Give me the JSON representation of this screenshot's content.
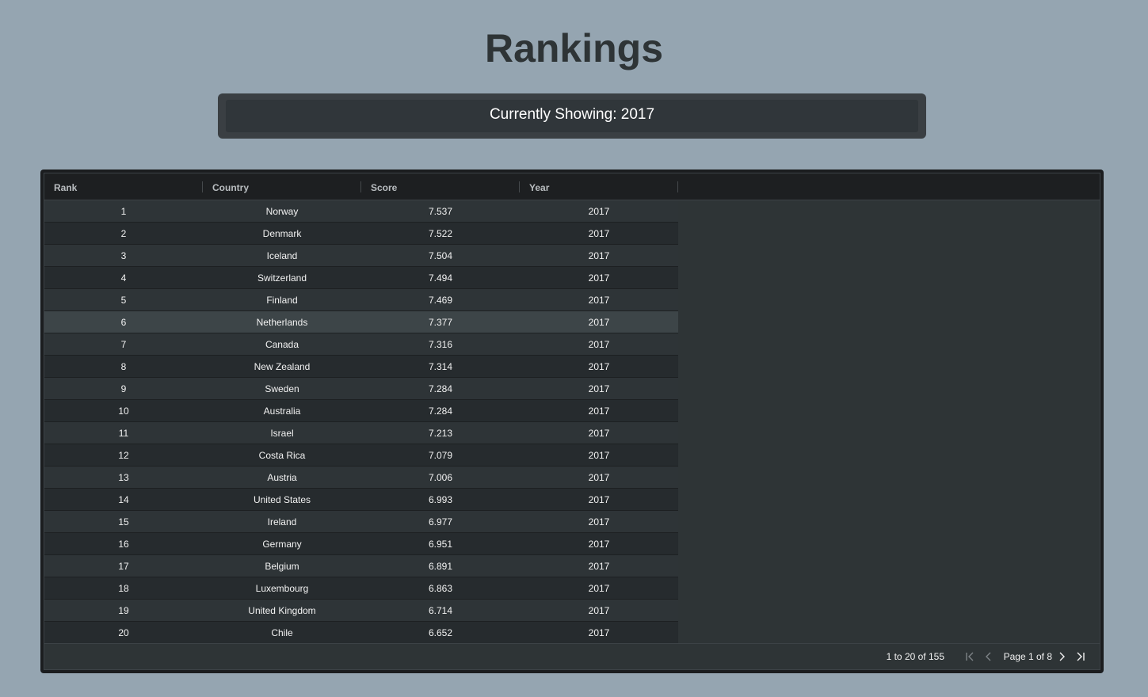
{
  "page": {
    "title": "Rankings",
    "showing_label": "Currently Showing: 2017"
  },
  "table": {
    "columns": [
      "Rank",
      "Country",
      "Score",
      "Year"
    ],
    "rows": [
      [
        "1",
        "Norway",
        "7.537",
        "2017"
      ],
      [
        "2",
        "Denmark",
        "7.522",
        "2017"
      ],
      [
        "3",
        "Iceland",
        "7.504",
        "2017"
      ],
      [
        "4",
        "Switzerland",
        "7.494",
        "2017"
      ],
      [
        "5",
        "Finland",
        "7.469",
        "2017"
      ],
      [
        "6",
        "Netherlands",
        "7.377",
        "2017"
      ],
      [
        "7",
        "Canada",
        "7.316",
        "2017"
      ],
      [
        "8",
        "New Zealand",
        "7.314",
        "2017"
      ],
      [
        "9",
        "Sweden",
        "7.284",
        "2017"
      ],
      [
        "10",
        "Australia",
        "7.284",
        "2017"
      ],
      [
        "11",
        "Israel",
        "7.213",
        "2017"
      ],
      [
        "12",
        "Costa Rica",
        "7.079",
        "2017"
      ],
      [
        "13",
        "Austria",
        "7.006",
        "2017"
      ],
      [
        "14",
        "United States",
        "6.993",
        "2017"
      ],
      [
        "15",
        "Ireland",
        "6.977",
        "2017"
      ],
      [
        "16",
        "Germany",
        "6.951",
        "2017"
      ],
      [
        "17",
        "Belgium",
        "6.891",
        "2017"
      ],
      [
        "18",
        "Luxembourg",
        "6.863",
        "2017"
      ],
      [
        "19",
        "United Kingdom",
        "6.714",
        "2017"
      ],
      [
        "20",
        "Chile",
        "6.652",
        "2017"
      ]
    ],
    "hovered_row": 6
  },
  "pagination": {
    "summary": "1 to 20 of 155",
    "page_label": "Page 1 of 8",
    "icons": {
      "first": "first-page-icon",
      "prev": "previous-page-icon",
      "next": "next-page-icon",
      "last": "last-page-icon"
    }
  },
  "colors": {
    "background": "#95a5b1",
    "grid_header": "#1d1f21",
    "row": "#2e3437",
    "row_alt": "#262b2e",
    "row_hover": "#3d4548"
  }
}
